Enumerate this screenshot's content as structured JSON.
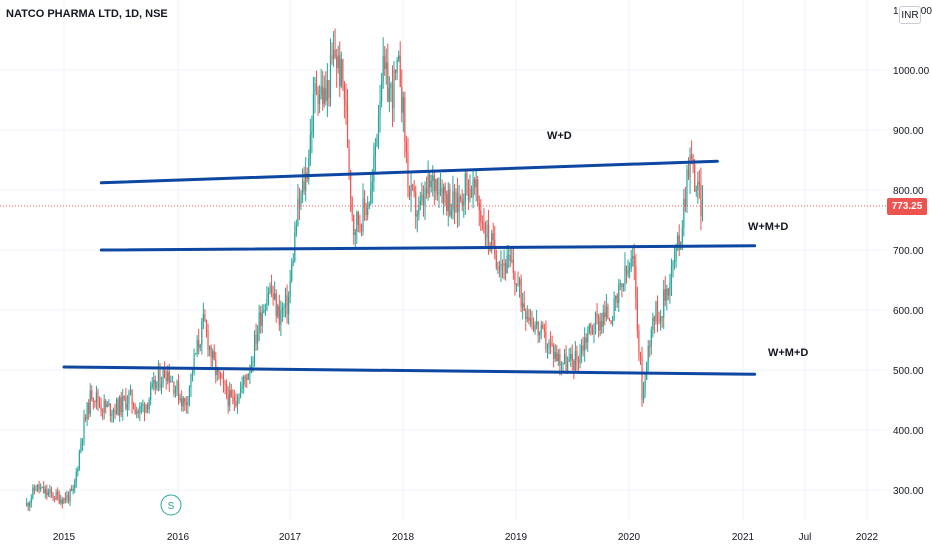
{
  "header": {
    "title": "NATCO PHARMA LTD, 1D, NSE"
  },
  "currency_button": "INR",
  "last_price_label": "773.25",
  "split_marker": "S",
  "colors": {
    "up": "#26a69a",
    "down": "#ef5350",
    "trendline": "#0d47a1",
    "grid": "#f0f3fa",
    "split": "#26a69a"
  },
  "chart_data": {
    "type": "candlestick",
    "title": "NATCO PHARMA LTD, 1D, NSE",
    "interval": "1D",
    "exchange": "NSE",
    "currency": "INR",
    "y_axis": {
      "position": "right",
      "ticks": [
        300,
        400,
        500,
        600,
        700,
        800,
        900,
        1000
      ],
      "top_label": "1,100.00",
      "range": [
        255,
        1100
      ]
    },
    "y_tick_labels": [
      "300.00",
      "400.00",
      "500.00",
      "600.00",
      "700.00",
      "800.00",
      "900.00",
      "1000.00"
    ],
    "x_axis": {
      "tick_labels": [
        "2015",
        "2016",
        "2017",
        "2018",
        "2019",
        "2020",
        "2021",
        "Jul",
        "2022"
      ]
    },
    "last_price": 773.25,
    "price_path": [
      [
        "2014-09",
        275
      ],
      [
        "2014-10",
        305
      ],
      [
        "2014-11",
        295
      ],
      [
        "2014-12",
        290
      ],
      [
        "2015-01",
        285
      ],
      [
        "2015-02",
        295
      ],
      [
        "2015-03",
        400
      ],
      [
        "2015-04",
        465
      ],
      [
        "2015-05",
        440
      ],
      [
        "2015-06",
        435
      ],
      [
        "2015-07",
        440
      ],
      [
        "2015-08",
        455
      ],
      [
        "2015-09",
        430
      ],
      [
        "2015-10",
        450
      ],
      [
        "2015-11",
        480
      ],
      [
        "2015-12",
        500
      ],
      [
        "2016-01",
        470
      ],
      [
        "2016-02",
        440
      ],
      [
        "2016-03",
        520
      ],
      [
        "2016-04",
        580
      ],
      [
        "2016-05",
        510
      ],
      [
        "2016-06",
        470
      ],
      [
        "2016-07",
        445
      ],
      [
        "2016-08",
        470
      ],
      [
        "2016-09",
        510
      ],
      [
        "2016-10",
        590
      ],
      [
        "2016-11",
        640
      ],
      [
        "2016-12",
        590
      ],
      [
        "2017-01",
        610
      ],
      [
        "2017-02",
        760
      ],
      [
        "2017-03",
        830
      ],
      [
        "2017-04",
        980
      ],
      [
        "2017-05",
        950
      ],
      [
        "2017-06",
        1030
      ],
      [
        "2017-07",
        970
      ],
      [
        "2017-08",
        740
      ],
      [
        "2017-09",
        760
      ],
      [
        "2017-10",
        800
      ],
      [
        "2017-11",
        1000
      ],
      [
        "2017-12",
        960
      ],
      [
        "2018-01",
        1000
      ],
      [
        "2018-02",
        790
      ],
      [
        "2018-03",
        760
      ],
      [
        "2018-04",
        800
      ],
      [
        "2018-05",
        820
      ],
      [
        "2018-06",
        790
      ],
      [
        "2018-07",
        770
      ],
      [
        "2018-08",
        810
      ],
      [
        "2018-09",
        800
      ],
      [
        "2018-10",
        740
      ],
      [
        "2018-11",
        700
      ],
      [
        "2018-12",
        680
      ],
      [
        "2019-01",
        670
      ],
      [
        "2019-02",
        620
      ],
      [
        "2019-03",
        590
      ],
      [
        "2019-04",
        560
      ],
      [
        "2019-05",
        540
      ],
      [
        "2019-06",
        520
      ],
      [
        "2019-07",
        510
      ],
      [
        "2019-08",
        520
      ],
      [
        "2019-09",
        560
      ],
      [
        "2019-10",
        580
      ],
      [
        "2019-11",
        590
      ],
      [
        "2019-12",
        600
      ],
      [
        "2020-01",
        650
      ],
      [
        "2020-02",
        680
      ],
      [
        "2020-03",
        450
      ],
      [
        "2020-04",
        590
      ],
      [
        "2020-05",
        600
      ],
      [
        "2020-06",
        660
      ],
      [
        "2020-07",
        720
      ],
      [
        "2020-08",
        860
      ],
      [
        "2020-09",
        790
      ],
      [
        "2020-09-15",
        773.25
      ]
    ],
    "trendlines": [
      {
        "label": "W+D",
        "from": [
          "2015-05",
          812
        ],
        "to": [
          "2020-11",
          848
        ]
      },
      {
        "label": "W+M+D",
        "from": [
          "2015-05",
          700
        ],
        "to": [
          "2021-03",
          707
        ]
      },
      {
        "label": "W+M+D",
        "from": [
          "2015-01",
          505
        ],
        "to": [
          "2021-03",
          493
        ]
      }
    ],
    "annotations": [
      "W+D",
      "W+M+D",
      "W+M+D"
    ]
  }
}
